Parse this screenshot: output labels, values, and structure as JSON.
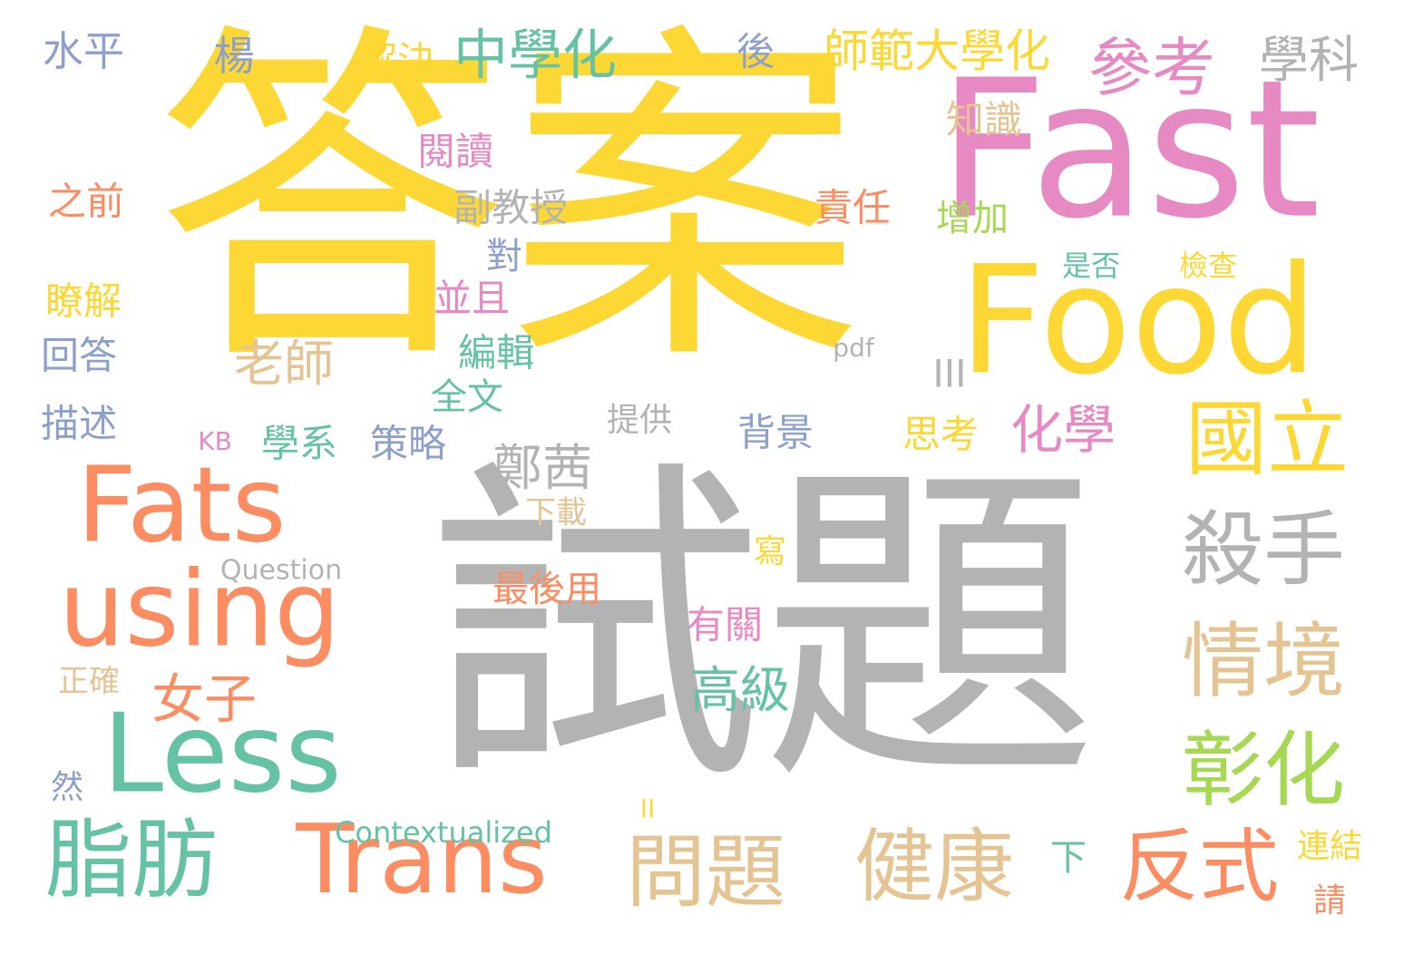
{
  "palette": {
    "yellow": "#fdd835",
    "pink": "#e78ac3",
    "gray": "#b3b3b3",
    "orange": "#fc8d62",
    "green": "#66c2a5",
    "tan": "#e5c494",
    "blue": "#8da0cb",
    "lime": "#a6d854"
  },
  "words": [
    {
      "text": "答案",
      "color": "yellow"
    },
    {
      "text": "試題",
      "color": "gray"
    },
    {
      "text": "Fast",
      "color": "pink"
    },
    {
      "text": "Food",
      "color": "yellow"
    },
    {
      "text": "Fats",
      "color": "orange"
    },
    {
      "text": "using",
      "color": "orange"
    },
    {
      "text": "Less",
      "color": "green"
    },
    {
      "text": "Trans",
      "color": "orange"
    },
    {
      "text": "脂肪",
      "color": "green"
    },
    {
      "text": "參考",
      "color": "pink"
    },
    {
      "text": "學科",
      "color": "gray"
    },
    {
      "text": "國立",
      "color": "yellow"
    },
    {
      "text": "殺手",
      "color": "gray"
    },
    {
      "text": "情境",
      "color": "tan"
    },
    {
      "text": "彰化",
      "color": "lime"
    },
    {
      "text": "反式",
      "color": "orange"
    },
    {
      "text": "健康",
      "color": "tan"
    },
    {
      "text": "問題",
      "color": "tan"
    },
    {
      "text": "中學化",
      "color": "green"
    },
    {
      "text": "師範大學化",
      "color": "yellow"
    },
    {
      "text": "水平",
      "color": "blue"
    },
    {
      "text": "楊",
      "color": "blue"
    },
    {
      "text": "解決",
      "color": "yellow"
    },
    {
      "text": "後",
      "color": "blue"
    },
    {
      "text": "知識",
      "color": "tan"
    },
    {
      "text": "閱讀",
      "color": "pink"
    },
    {
      "text": "之前",
      "color": "orange"
    },
    {
      "text": "副教授",
      "color": "gray"
    },
    {
      "text": "責任",
      "color": "orange"
    },
    {
      "text": "增加",
      "color": "lime"
    },
    {
      "text": "對",
      "color": "blue"
    },
    {
      "text": "是否",
      "color": "green"
    },
    {
      "text": "檢查",
      "color": "yellow"
    },
    {
      "text": "瞭解",
      "color": "yellow"
    },
    {
      "text": "並且",
      "color": "pink"
    },
    {
      "text": "老師",
      "color": "tan"
    },
    {
      "text": "回答",
      "color": "blue"
    },
    {
      "text": "pdf",
      "color": "gray"
    },
    {
      "text": "編輯",
      "color": "green"
    },
    {
      "text": "III",
      "color": "gray"
    },
    {
      "text": "全文",
      "color": "green"
    },
    {
      "text": "描述",
      "color": "blue"
    },
    {
      "text": "提供",
      "color": "gray"
    },
    {
      "text": "背景",
      "color": "blue"
    },
    {
      "text": "思考",
      "color": "yellow"
    },
    {
      "text": "化學",
      "color": "pink"
    },
    {
      "text": "KB",
      "color": "pink"
    },
    {
      "text": "學系",
      "color": "green"
    },
    {
      "text": "策略",
      "color": "blue"
    },
    {
      "text": "鄭茜",
      "color": "gray"
    },
    {
      "text": "下載",
      "color": "tan"
    },
    {
      "text": "Question",
      "color": "gray"
    },
    {
      "text": "寫",
      "color": "yellow"
    },
    {
      "text": "最後用",
      "color": "orange"
    },
    {
      "text": "有關",
      "color": "pink"
    },
    {
      "text": "女子",
      "color": "orange"
    },
    {
      "text": "高級",
      "color": "green"
    },
    {
      "text": "正確",
      "color": "tan"
    },
    {
      "text": "然",
      "color": "blue"
    },
    {
      "text": "II",
      "color": "yellow"
    },
    {
      "text": "Contextualized",
      "color": "green"
    },
    {
      "text": "下",
      "color": "green"
    },
    {
      "text": "連結",
      "color": "yellow"
    },
    {
      "text": "請",
      "color": "orange"
    }
  ]
}
